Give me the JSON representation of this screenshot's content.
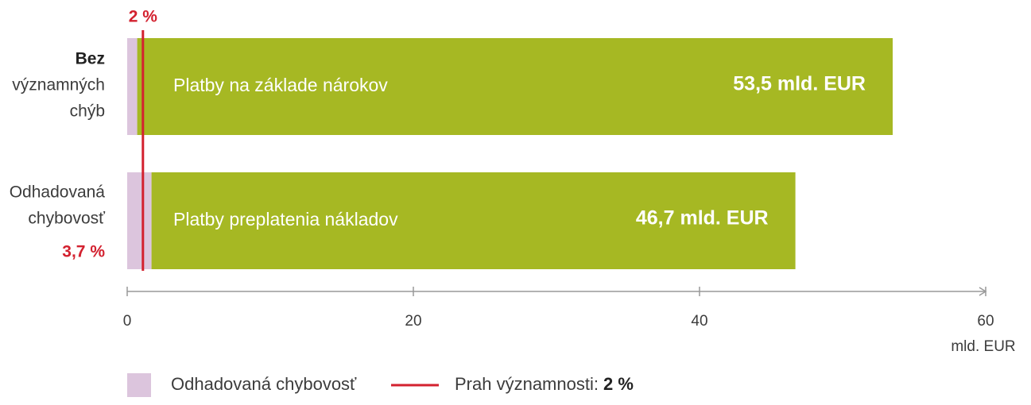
{
  "chart_data": {
    "type": "stacked_bar_h",
    "categories": [
      "Platby na základe nárokov",
      "Platby preplatenia nákladov"
    ],
    "row_labels": [
      [
        "Bez",
        "významných",
        "chýb"
      ],
      [
        "Odhadovaná",
        "chybovosť",
        "3,7 %"
      ]
    ],
    "series": [
      {
        "name": "Odhadovaná chybovosť",
        "color": "#dcc5dd",
        "values": [
          0.7,
          1.7
        ]
      },
      {
        "color": "#a6b823",
        "values": [
          52.8,
          45.0
        ]
      }
    ],
    "totals": [
      53.5,
      46.7
    ],
    "total_labels": [
      "53,5 mld. EUR",
      "46,7 mld. EUR"
    ],
    "threshold": {
      "value": 1.1,
      "label": "2 %",
      "color": "#d3212f",
      "legend": "Prah významnosti:",
      "legend_value": "2 %"
    },
    "xlim": [
      0,
      60
    ],
    "xticks": [
      0,
      20,
      40,
      60
    ],
    "xlabel": "mld. EUR"
  }
}
